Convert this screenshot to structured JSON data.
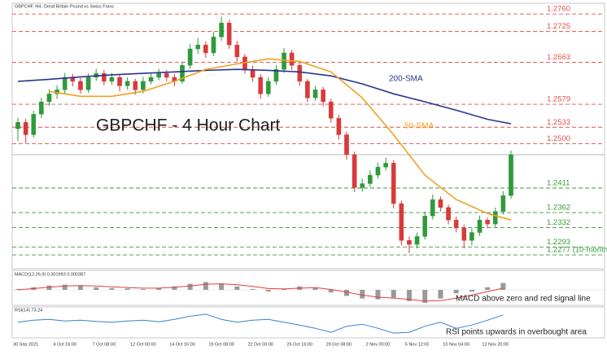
{
  "chart_data": [
    {
      "type": "candlestick",
      "header": "GBPCHF, H4: Great Britain Pound vs Swiss Franc",
      "title": "GBPCHF - 4 Hour Chart",
      "categories": [
        null,
        "30 Sep 2021",
        null,
        null,
        null,
        null,
        "4 Oct 16:00",
        null,
        null,
        null,
        null,
        "7 Oct 08:00",
        null,
        null,
        null,
        null,
        "12 Oct 00:00",
        null,
        null,
        null,
        null,
        "14 Oct 16:00",
        null,
        null,
        null,
        null,
        "19 Oct 08:00",
        null,
        null,
        null,
        null,
        "22 Oct 00:00",
        null,
        null,
        null,
        null,
        "26 Oct 16:00",
        null,
        null,
        null,
        null,
        "29 Oct 08:00",
        null,
        null,
        null,
        null,
        "2 Nov 00:00",
        null,
        null,
        null,
        null,
        "5 Nov 12:00",
        null,
        null,
        null,
        null,
        "10 Nov 04:00",
        null,
        null,
        null,
        null,
        "12 Nov 20:00",
        null,
        null
      ],
      "open": [
        1.253,
        1.2543,
        1.2518,
        1.2559,
        1.2584,
        1.26,
        1.2608,
        1.2633,
        1.2625,
        1.2608,
        1.2633,
        1.2641,
        1.2625,
        1.2633,
        1.2616,
        1.2625,
        1.2608,
        1.2625,
        1.2633,
        1.2641,
        1.2633,
        1.2625,
        1.2657,
        1.269,
        1.2698,
        1.2682,
        1.2714,
        1.2742,
        1.2698,
        1.2674,
        1.2649,
        1.2633,
        1.26,
        1.2625,
        1.2649,
        1.2682,
        1.2657,
        1.2625,
        1.2592,
        1.2608,
        1.2584,
        1.2551,
        1.2518,
        1.2478,
        1.2412,
        1.242,
        1.2437,
        1.2453,
        1.2461,
        1.238,
        1.2306,
        1.2298,
        1.2314,
        1.2355,
        1.2388,
        1.2372,
        1.2347,
        1.2331,
        1.2306,
        1.2322,
        1.2347,
        1.2339,
        1.2364,
        1.2396
      ],
      "high": [
        1.2552,
        1.255,
        1.2566,
        1.2592,
        1.2609,
        1.2617,
        1.2642,
        1.264,
        1.2632,
        1.2641,
        1.265,
        1.2648,
        1.2642,
        1.264,
        1.2633,
        1.263,
        1.2634,
        1.2642,
        1.265,
        1.2648,
        1.264,
        1.2665,
        1.27,
        1.2712,
        1.2705,
        1.2724,
        1.2755,
        1.2748,
        1.2706,
        1.268,
        1.2656,
        1.264,
        1.2633,
        1.2657,
        1.2692,
        1.2688,
        1.2663,
        1.263,
        1.2616,
        1.2614,
        1.259,
        1.2558,
        1.2524,
        1.2484,
        1.243,
        1.2446,
        1.2462,
        1.2472,
        1.2467,
        1.2386,
        1.2314,
        1.2322,
        1.2364,
        1.2398,
        1.2394,
        1.2378,
        1.2354,
        1.2338,
        1.233,
        1.2356,
        1.2352,
        1.2372,
        1.2405,
        1.2486
      ],
      "low": [
        1.2505,
        1.2502,
        1.2512,
        1.2551,
        1.2576,
        1.259,
        1.2601,
        1.2615,
        1.26,
        1.2602,
        1.2626,
        1.2617,
        1.2618,
        1.2605,
        1.2608,
        1.2598,
        1.2601,
        1.2619,
        1.2627,
        1.2625,
        1.2615,
        1.262,
        1.265,
        1.268,
        1.2672,
        1.2676,
        1.2706,
        1.269,
        1.2665,
        1.264,
        1.2624,
        1.259,
        1.2594,
        1.2618,
        1.2642,
        1.2648,
        1.2616,
        1.2583,
        1.2586,
        1.2575,
        1.2542,
        1.2508,
        1.2468,
        1.2403,
        1.2404,
        1.2413,
        1.243,
        1.2446,
        1.237,
        1.2296,
        1.228,
        1.229,
        1.2308,
        1.2348,
        1.2364,
        1.2338,
        1.2322,
        1.229,
        1.2296,
        1.2315,
        1.233,
        1.2333,
        1.2358,
        1.239
      ],
      "close": [
        1.2543,
        1.2518,
        1.2559,
        1.2584,
        1.26,
        1.2608,
        1.2633,
        1.2625,
        1.2608,
        1.2633,
        1.2641,
        1.2625,
        1.2633,
        1.2616,
        1.2625,
        1.2608,
        1.2625,
        1.2633,
        1.2641,
        1.2633,
        1.2625,
        1.2657,
        1.269,
        1.2698,
        1.2682,
        1.2714,
        1.2742,
        1.2698,
        1.2674,
        1.2649,
        1.2633,
        1.26,
        1.2625,
        1.2649,
        1.2682,
        1.2657,
        1.2625,
        1.2592,
        1.2608,
        1.2584,
        1.2551,
        1.2518,
        1.2478,
        1.2412,
        1.242,
        1.2437,
        1.2453,
        1.2461,
        1.238,
        1.2306,
        1.2298,
        1.2314,
        1.2355,
        1.2388,
        1.2372,
        1.2347,
        1.2331,
        1.2306,
        1.2322,
        1.2347,
        1.2339,
        1.2364,
        1.2396,
        1.2478
      ],
      "up_color": "#2f9a3a",
      "down_color": "#d83a3a",
      "last_price_color": "#b0b0b0",
      "ylim": [
        1.2269,
        1.2775
      ],
      "yticks": [
        {
          "value": 1.276,
          "label": "1.2760"
        },
        1.2725,
        1.2663,
        1.2579,
        1.2533,
        {
          "value": 1.25,
          "label": "1.2500"
        },
        1.2411,
        1.2362,
        1.2332,
        1.2293,
        {
          "value": 1.2277,
          "label": "1.2277 (10-month low)"
        }
      ],
      "ytick_colors": [
        "#e05050",
        "#e05050",
        "#e05050",
        "#e05050",
        "#e05050",
        "#e05050",
        "#3a9a3a",
        "#3a9a3a",
        "#3a9a3a",
        "#3a9a3a",
        "#3a9a3a"
      ],
      "series": [
        {
          "name": "200-SMA",
          "color": "#2a3590",
          "x": [
            0,
            4,
            8,
            12,
            16,
            20,
            24,
            28,
            32,
            36,
            40,
            44,
            48,
            52,
            56,
            60,
            63
          ],
          "values": [
            1.2625,
            1.2629,
            1.2634,
            1.2638,
            1.2641,
            1.2644,
            1.2647,
            1.2649,
            1.2647,
            1.2644,
            1.2636,
            1.262,
            1.26,
            1.2584,
            1.2567,
            1.2549,
            1.254
          ]
        },
        {
          "name": "50-SMA",
          "color": "#f0a020",
          "x": [
            4,
            8,
            12,
            16,
            20,
            24,
            28,
            32,
            36,
            40,
            44,
            48,
            52,
            56,
            60,
            63
          ],
          "values": [
            1.2605,
            1.2595,
            1.2595,
            1.2605,
            1.2625,
            1.2649,
            1.266,
            1.267,
            1.2665,
            1.2644,
            1.2592,
            1.2518,
            1.2437,
            1.2388,
            1.236,
            1.2347
          ]
        }
      ]
    },
    {
      "type": "macd",
      "label": "MACD(12,26,9) 0.001993 0.000387",
      "annotation": "MACD above zero and red signal line",
      "x": [
        0,
        2,
        4,
        6,
        8,
        10,
        12,
        14,
        16,
        18,
        20,
        22,
        24,
        26,
        28,
        30,
        32,
        34,
        36,
        38,
        40,
        42,
        44,
        46,
        48,
        50,
        52,
        54,
        56,
        58,
        60,
        62
      ],
      "histogram": [
        0.0002,
        0.0006,
        0.001,
        0.0012,
        0.001,
        0.0006,
        0.0004,
        0.0003,
        0.0002,
        0.0004,
        0.0008,
        0.0014,
        0.0018,
        0.0015,
        0.0008,
        0.0002,
        -0.0004,
        0.0003,
        0.0008,
        0.0004,
        -0.0006,
        -0.0014,
        -0.002,
        -0.0022,
        -0.0018,
        -0.0026,
        -0.003,
        -0.002,
        -0.0008,
        -0.0004,
        0.0006,
        0.0016
      ],
      "signal": [
        0.0,
        0.0003,
        0.0006,
        0.0009,
        0.001,
        0.0009,
        0.0007,
        0.0005,
        0.0004,
        0.0004,
        0.0006,
        0.0009,
        0.0013,
        0.0014,
        0.0012,
        0.0008,
        0.0003,
        0.0002,
        0.0004,
        0.0005,
        0.0001,
        -0.0005,
        -0.0012,
        -0.0017,
        -0.0019,
        -0.0022,
        -0.0026,
        -0.0025,
        -0.0019,
        -0.0012,
        -0.0004,
        0.0004
      ],
      "histogram_color": "#9a9a9a",
      "signal_color": "#e04040",
      "ylim": [
        -0.0032,
        0.0032
      ]
    },
    {
      "type": "rsi",
      "label": "RSI(14) 73.24",
      "annotation": "RSI points upwards in overbought area",
      "x": [
        0,
        2,
        4,
        6,
        8,
        10,
        12,
        14,
        16,
        18,
        20,
        22,
        24,
        26,
        28,
        30,
        32,
        34,
        36,
        38,
        40,
        42,
        44,
        46,
        48,
        50,
        52,
        54,
        56,
        58,
        60,
        62
      ],
      "values": [
        55,
        60,
        62,
        58,
        60,
        57,
        55,
        58,
        60,
        56,
        62,
        70,
        75,
        62,
        55,
        60,
        62,
        55,
        48,
        40,
        30,
        45,
        50,
        40,
        28,
        30,
        45,
        55,
        40,
        48,
        60,
        73.24
      ],
      "color": "#3a80d0",
      "ylim": [
        20,
        85
      ]
    }
  ]
}
